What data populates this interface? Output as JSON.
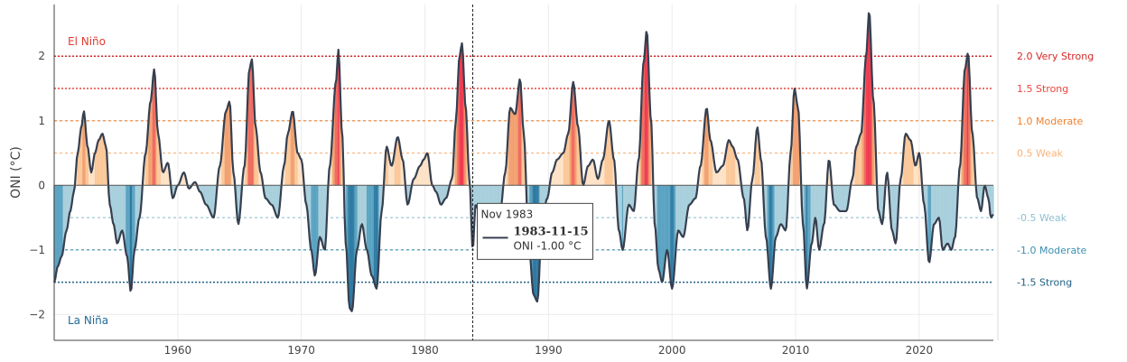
{
  "chart_data": {
    "type": "line",
    "xlabel": "",
    "ylabel": "ONI (°C)",
    "xlim": [
      1950,
      2026
    ],
    "ylim": [
      -2.4,
      2.8
    ],
    "x_ticks": [
      {
        "value": 1960,
        "label": "1960"
      },
      {
        "value": 1970,
        "label": "1970"
      },
      {
        "value": 1980,
        "label": "1980"
      },
      {
        "value": 1990,
        "label": "1990"
      },
      {
        "value": 2000,
        "label": "2000"
      },
      {
        "value": 2010,
        "label": "2010"
      },
      {
        "value": 2020,
        "label": "2020"
      }
    ],
    "y_ticks": [
      {
        "value": 2,
        "label": "2"
      },
      {
        "value": 1,
        "label": "1"
      },
      {
        "value": 0,
        "label": "0"
      },
      {
        "value": -1,
        "label": "−1"
      },
      {
        "value": -2,
        "label": "−2"
      }
    ],
    "grid": true,
    "line_color": "#363f4f",
    "thresholds": [
      {
        "value": 2.0,
        "label": "2.0 Very Strong",
        "color": "#d62728"
      },
      {
        "value": 1.5,
        "label": "1.5 Strong",
        "color": "#e8453c"
      },
      {
        "value": 1.0,
        "label": "1.0 Moderate",
        "color": "#f0812f"
      },
      {
        "value": 0.5,
        "label": "0.5 Weak",
        "color": "#f8b27a"
      },
      {
        "value": -0.5,
        "label": "-0.5 Weak",
        "color": "#8fc0d0"
      },
      {
        "value": -1.0,
        "label": "-1.0 Moderate",
        "color": "#3b8fb0"
      },
      {
        "value": -1.5,
        "label": "-1.5 Strong",
        "color": "#1f5f85"
      }
    ],
    "fill_colors": {
      "very_strong_pos": "#f03b4f",
      "strong_pos": "#f06b60",
      "moderate_pos": "#f3a070",
      "weak_pos": "#fbc89a",
      "neutral_pos": "#fde2c6",
      "weak_neg": "#a8cfdc",
      "moderate_neg": "#5aa3c2",
      "strong_neg": "#2f7aa3"
    },
    "annotations": {
      "el_nino": {
        "text": "El Niño",
        "color": "#e03c31"
      },
      "la_nina": {
        "text": "La Niña",
        "color": "#1f6b94"
      }
    },
    "hover": {
      "x": 1983.87,
      "title": "Nov 1983",
      "date": "1983-11-15",
      "value_text": "ONI -1.00 °C"
    },
    "keypoints": [
      [
        1950.0,
        -1.5
      ],
      [
        1950.3,
        -1.25
      ],
      [
        1950.6,
        -1.1
      ],
      [
        1951.0,
        -0.7
      ],
      [
        1951.3,
        -0.4
      ],
      [
        1951.6,
        -0.1
      ],
      [
        1951.9,
        0.5
      ],
      [
        1952.2,
        0.9
      ],
      [
        1952.4,
        1.15
      ],
      [
        1952.7,
        0.6
      ],
      [
        1953.0,
        0.2
      ],
      [
        1953.3,
        0.5
      ],
      [
        1953.6,
        0.7
      ],
      [
        1953.9,
        0.8
      ],
      [
        1954.2,
        0.6
      ],
      [
        1954.5,
        -0.3
      ],
      [
        1954.8,
        -0.6
      ],
      [
        1955.1,
        -0.9
      ],
      [
        1955.5,
        -0.7
      ],
      [
        1955.9,
        -1.1
      ],
      [
        1956.2,
        -1.65
      ],
      [
        1956.5,
        -1.0
      ],
      [
        1956.9,
        -0.5
      ],
      [
        1957.4,
        0.5
      ],
      [
        1957.8,
        1.3
      ],
      [
        1958.1,
        1.8
      ],
      [
        1958.4,
        0.8
      ],
      [
        1958.8,
        0.2
      ],
      [
        1959.2,
        0.35
      ],
      [
        1959.6,
        -0.2
      ],
      [
        1960.0,
        0.0
      ],
      [
        1960.5,
        0.2
      ],
      [
        1960.9,
        -0.05
      ],
      [
        1961.4,
        0.05
      ],
      [
        1961.8,
        -0.1
      ],
      [
        1962.3,
        -0.3
      ],
      [
        1962.9,
        -0.5
      ],
      [
        1963.4,
        0.3
      ],
      [
        1963.9,
        1.15
      ],
      [
        1964.2,
        1.3
      ],
      [
        1964.5,
        0.2
      ],
      [
        1964.9,
        -0.6
      ],
      [
        1965.4,
        0.3
      ],
      [
        1965.8,
        1.8
      ],
      [
        1966.0,
        1.95
      ],
      [
        1966.3,
        0.9
      ],
      [
        1966.7,
        0.2
      ],
      [
        1967.1,
        -0.2
      ],
      [
        1967.6,
        -0.3
      ],
      [
        1968.1,
        -0.5
      ],
      [
        1968.6,
        0.3
      ],
      [
        1968.9,
        0.8
      ],
      [
        1969.3,
        1.15
      ],
      [
        1969.7,
        0.5
      ],
      [
        1970.0,
        0.4
      ],
      [
        1970.4,
        -0.3
      ],
      [
        1970.8,
        -1.0
      ],
      [
        1971.1,
        -1.4
      ],
      [
        1971.5,
        -0.8
      ],
      [
        1971.9,
        -1.0
      ],
      [
        1972.3,
        0.3
      ],
      [
        1972.8,
        1.6
      ],
      [
        1973.0,
        2.1
      ],
      [
        1973.3,
        0.8
      ],
      [
        1973.6,
        -0.9
      ],
      [
        1973.9,
        -1.9
      ],
      [
        1974.1,
        -1.95
      ],
      [
        1974.5,
        -1.0
      ],
      [
        1974.9,
        -0.6
      ],
      [
        1975.3,
        -1.0
      ],
      [
        1975.7,
        -1.4
      ],
      [
        1976.1,
        -1.6
      ],
      [
        1976.5,
        -0.4
      ],
      [
        1976.9,
        0.6
      ],
      [
        1977.3,
        0.3
      ],
      [
        1977.8,
        0.75
      ],
      [
        1978.2,
        0.4
      ],
      [
        1978.6,
        -0.3
      ],
      [
        1979.1,
        0.1
      ],
      [
        1979.6,
        0.3
      ],
      [
        1979.9,
        0.4
      ],
      [
        1980.2,
        0.5
      ],
      [
        1980.6,
        0.0
      ],
      [
        1980.9,
        -0.1
      ],
      [
        1981.3,
        -0.3
      ],
      [
        1981.7,
        -0.2
      ],
      [
        1982.2,
        0.1
      ],
      [
        1982.5,
        1.0
      ],
      [
        1982.8,
        2.0
      ],
      [
        1983.0,
        2.2
      ],
      [
        1983.3,
        1.2
      ],
      [
        1983.6,
        0.1
      ],
      [
        1983.87,
        -1.0
      ],
      [
        1984.1,
        -0.3
      ],
      [
        1984.4,
        -0.4
      ],
      [
        1984.8,
        -0.7
      ],
      [
        1985.2,
        -1.0
      ],
      [
        1985.7,
        -0.5
      ],
      [
        1986.1,
        -0.4
      ],
      [
        1986.5,
        0.2
      ],
      [
        1986.9,
        1.2
      ],
      [
        1987.3,
        1.1
      ],
      [
        1987.7,
        1.65
      ],
      [
        1988.0,
        0.8
      ],
      [
        1988.4,
        -0.9
      ],
      [
        1988.8,
        -1.7
      ],
      [
        1989.1,
        -1.8
      ],
      [
        1989.5,
        -0.5
      ],
      [
        1989.9,
        -0.2
      ],
      [
        1990.3,
        0.2
      ],
      [
        1990.7,
        0.4
      ],
      [
        1991.2,
        0.5
      ],
      [
        1991.6,
        0.8
      ],
      [
        1992.0,
        1.6
      ],
      [
        1992.4,
        0.9
      ],
      [
        1992.8,
        0.0
      ],
      [
        1993.2,
        0.3
      ],
      [
        1993.6,
        0.4
      ],
      [
        1994.0,
        0.1
      ],
      [
        1994.4,
        0.4
      ],
      [
        1994.9,
        1.0
      ],
      [
        1995.3,
        0.4
      ],
      [
        1995.7,
        -0.7
      ],
      [
        1996.0,
        -1.0
      ],
      [
        1996.5,
        -0.3
      ],
      [
        1996.9,
        -0.4
      ],
      [
        1997.3,
        0.4
      ],
      [
        1997.7,
        1.9
      ],
      [
        1997.95,
        2.4
      ],
      [
        1998.3,
        1.0
      ],
      [
        1998.6,
        -0.6
      ],
      [
        1998.9,
        -1.3
      ],
      [
        1999.2,
        -1.5
      ],
      [
        1999.6,
        -1.0
      ],
      [
        2000.0,
        -1.6
      ],
      [
        2000.5,
        -0.7
      ],
      [
        2000.9,
        -0.8
      ],
      [
        2001.4,
        -0.3
      ],
      [
        2001.9,
        -0.2
      ],
      [
        2002.3,
        0.3
      ],
      [
        2002.8,
        1.2
      ],
      [
        2003.1,
        0.7
      ],
      [
        2003.6,
        0.2
      ],
      [
        2004.1,
        0.3
      ],
      [
        2004.6,
        0.7
      ],
      [
        2004.9,
        0.6
      ],
      [
        2005.3,
        0.4
      ],
      [
        2005.8,
        -0.2
      ],
      [
        2006.1,
        -0.7
      ],
      [
        2006.5,
        0.1
      ],
      [
        2006.9,
        0.9
      ],
      [
        2007.2,
        0.4
      ],
      [
        2007.6,
        -0.8
      ],
      [
        2008.0,
        -1.6
      ],
      [
        2008.4,
        -0.8
      ],
      [
        2008.8,
        -0.6
      ],
      [
        2009.2,
        -0.7
      ],
      [
        2009.6,
        0.5
      ],
      [
        2009.9,
        1.5
      ],
      [
        2010.2,
        1.2
      ],
      [
        2010.6,
        -0.6
      ],
      [
        2010.9,
        -1.6
      ],
      [
        2011.3,
        -0.9
      ],
      [
        2011.6,
        -0.5
      ],
      [
        2011.9,
        -1.0
      ],
      [
        2012.3,
        -0.6
      ],
      [
        2012.7,
        0.4
      ],
      [
        2013.1,
        -0.3
      ],
      [
        2013.6,
        -0.4
      ],
      [
        2014.1,
        -0.4
      ],
      [
        2014.6,
        0.1
      ],
      [
        2014.9,
        0.6
      ],
      [
        2015.3,
        0.8
      ],
      [
        2015.7,
        2.0
      ],
      [
        2015.95,
        2.7
      ],
      [
        2016.3,
        1.3
      ],
      [
        2016.7,
        -0.4
      ],
      [
        2017.0,
        -0.6
      ],
      [
        2017.4,
        0.2
      ],
      [
        2017.8,
        -0.7
      ],
      [
        2018.1,
        -0.9
      ],
      [
        2018.5,
        0.1
      ],
      [
        2018.9,
        0.8
      ],
      [
        2019.3,
        0.7
      ],
      [
        2019.7,
        0.3
      ],
      [
        2020.0,
        0.5
      ],
      [
        2020.4,
        -0.3
      ],
      [
        2020.8,
        -1.2
      ],
      [
        2021.2,
        -0.6
      ],
      [
        2021.6,
        -0.5
      ],
      [
        2021.9,
        -1.0
      ],
      [
        2022.3,
        -0.9
      ],
      [
        2022.6,
        -1.0
      ],
      [
        2022.9,
        -0.8
      ],
      [
        2023.3,
        0.3
      ],
      [
        2023.7,
        1.8
      ],
      [
        2023.95,
        2.05
      ],
      [
        2024.3,
        0.8
      ],
      [
        2024.7,
        -0.2
      ],
      [
        2025.0,
        -0.4
      ],
      [
        2025.3,
        0.0
      ],
      [
        2025.6,
        -0.2
      ],
      [
        2025.8,
        -0.5
      ],
      [
        2026.0,
        -0.45
      ]
    ]
  }
}
